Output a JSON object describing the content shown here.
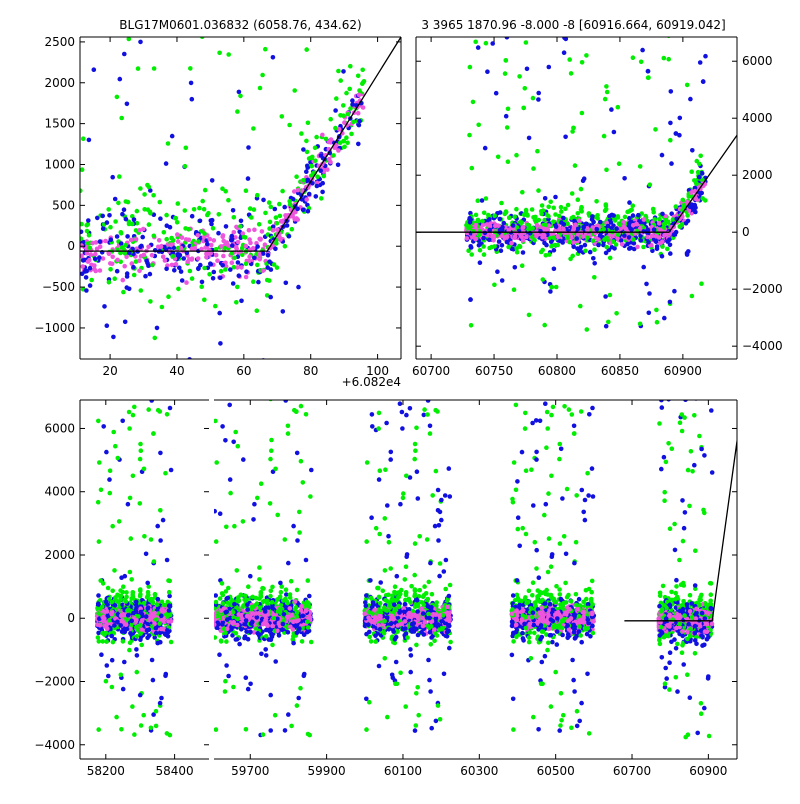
{
  "chart_data": [
    {
      "id": "top-left",
      "type": "scatter",
      "title": "BLG17M0601.036832 (6058.76, 434.62)",
      "x_offset_label": "+6.082e4",
      "xlim": [
        11,
        107
      ],
      "ylim": [
        -1380,
        2560
      ],
      "xticks": [
        20,
        40,
        60,
        80,
        100
      ],
      "yticks": [
        -1000,
        -500,
        0,
        500,
        1000,
        1500,
        2000,
        2500
      ],
      "model_line": [
        [
          11,
          -60
        ],
        [
          67,
          -60
        ],
        [
          107,
          2560
        ]
      ],
      "series": [
        {
          "name": "green",
          "color": "#00ee00"
        },
        {
          "name": "blue",
          "color": "#1010e0"
        },
        {
          "name": "magenta",
          "color": "#ee55dd"
        }
      ],
      "point_segments": [
        {
          "x": [
            11,
            67
          ],
          "center": -60,
          "spread": 350,
          "outlier": 1300
        },
        {
          "x": [
            67,
            96
          ],
          "center": "model",
          "spread": 250,
          "outlier": 800
        }
      ]
    },
    {
      "id": "top-right",
      "type": "scatter",
      "title": "3 3965 1870.96 -8.000 -8 [60916.664, 60919.042]",
      "xlim": [
        60688,
        60943
      ],
      "ylim": [
        -4450,
        6850
      ],
      "xticks": [
        60700,
        60750,
        60800,
        60850,
        60900
      ],
      "yticks": [
        -4000,
        -2000,
        0,
        2000,
        4000,
        6000
      ],
      "y_axis_side": "right",
      "model_line": [
        [
          60688,
          0
        ],
        [
          60889,
          0
        ],
        [
          60943,
          3400
        ]
      ],
      "point_segments": [
        {
          "x": [
            60728,
            60918
          ],
          "center": "model",
          "spread": 450,
          "outlier": 2600
        }
      ]
    },
    {
      "id": "bottom",
      "type": "scatter",
      "ylim": [
        -4450,
        6900
      ],
      "yticks": [
        -4000,
        -2000,
        0,
        2000,
        4000,
        6000
      ],
      "model_line_xrange": [
        60680,
        60990
      ],
      "model_line": [
        [
          60680,
          -80
        ],
        [
          60910,
          -80
        ],
        [
          60990,
          6900
        ]
      ],
      "panels": [
        {
          "xlim": [
            58125,
            58500
          ],
          "xticks": [
            58200,
            58400
          ],
          "seasons": [
            [
              58175,
              58390
            ]
          ]
        },
        {
          "xlim": [
            59605,
            60975
          ],
          "xticks": [
            59700,
            59900,
            60100,
            60300,
            60500,
            60700,
            60900
          ],
          "seasons": [
            [
              59605,
              59860
            ],
            [
              60000,
              60225
            ],
            [
              60385,
              60600
            ],
            [
              60770,
              60910
            ]
          ]
        }
      ]
    }
  ]
}
